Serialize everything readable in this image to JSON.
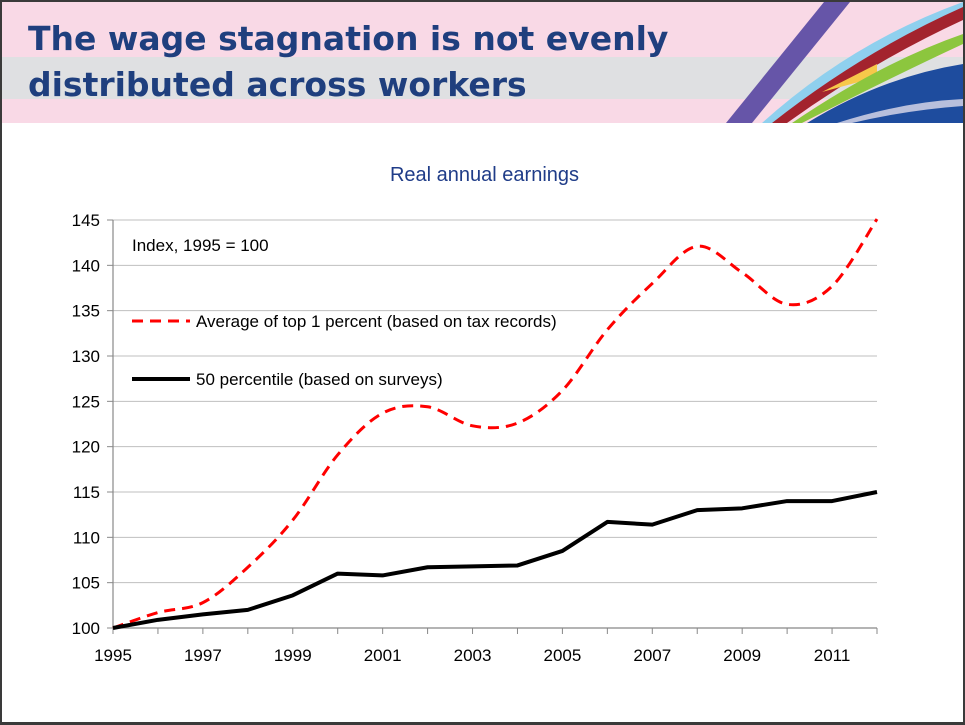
{
  "slide": {
    "title_line1": "The wage stagnation is not evenly",
    "title_line2": "distributed across workers"
  },
  "chart_data": {
    "type": "line",
    "title": "Real annual earnings",
    "annotation": "Index, 1995 = 100",
    "xlabel": "",
    "ylabel": "",
    "x": [
      1995,
      1996,
      1997,
      1998,
      1999,
      2000,
      2001,
      2002,
      2003,
      2004,
      2005,
      2006,
      2007,
      2008,
      2009,
      2010,
      2011,
      2012
    ],
    "x_tick_labels": [
      "1995",
      "1997",
      "1999",
      "2001",
      "2003",
      "2005",
      "2007",
      "2009",
      "2011"
    ],
    "y_tick_labels": [
      "100",
      "105",
      "110",
      "115",
      "120",
      "125",
      "130",
      "135",
      "140",
      "145"
    ],
    "ylim": [
      100,
      145
    ],
    "grid": true,
    "legend_position": "top-left",
    "series": [
      {
        "name": "Average of top 1 percent (based on tax records)",
        "color": "#ff0000",
        "style": "dashed",
        "values": [
          100,
          101.7,
          102.8,
          106.7,
          111.9,
          119.1,
          123.7,
          124.4,
          122.3,
          122.6,
          126.2,
          132.9,
          138.0,
          142.1,
          139.2,
          135.7,
          137.7,
          145.1
        ]
      },
      {
        "name": "50 percentile (based on surveys)",
        "color": "#000000",
        "style": "solid",
        "values": [
          100,
          100.9,
          101.5,
          102.0,
          103.6,
          106.0,
          105.8,
          106.7,
          106.8,
          106.9,
          108.5,
          111.7,
          111.4,
          113.0,
          113.2,
          114.0,
          114.0,
          115.0
        ]
      }
    ]
  }
}
